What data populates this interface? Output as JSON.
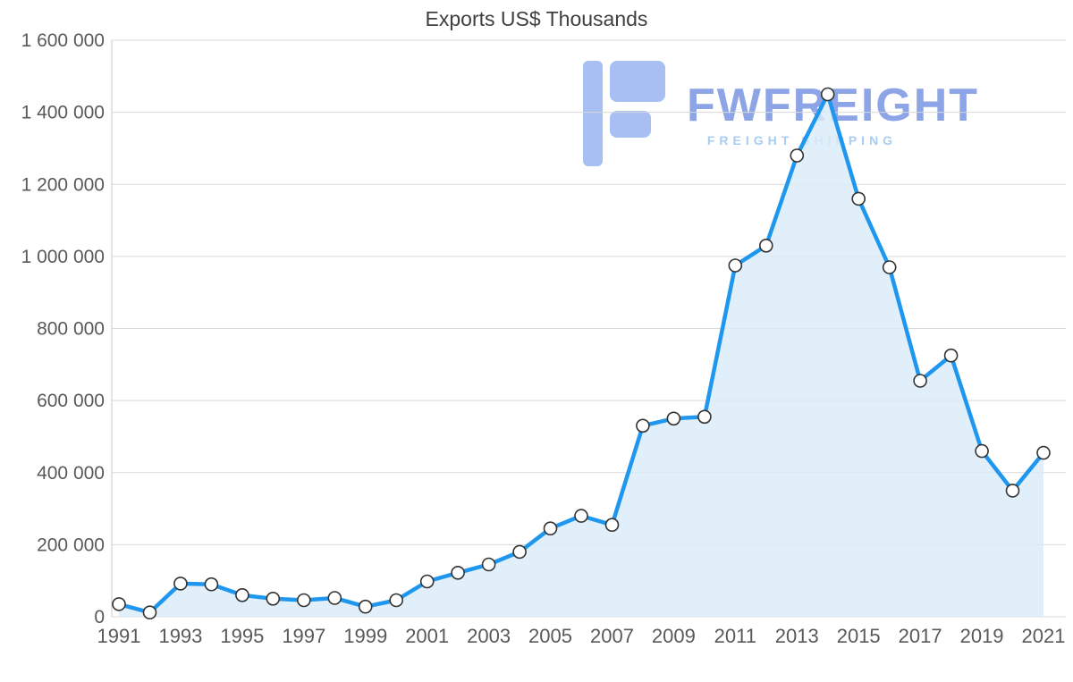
{
  "watermark": {
    "brand": "FWFREIGHT",
    "subtitle": "FREIGHT SHIPPING"
  },
  "chart_data": {
    "type": "area",
    "title": "Exports US$ Thousands",
    "xlabel": "",
    "ylabel": "",
    "x": [
      1991,
      1992,
      1993,
      1994,
      1995,
      1996,
      1997,
      1998,
      1999,
      2000,
      2001,
      2002,
      2003,
      2004,
      2005,
      2006,
      2007,
      2008,
      2009,
      2010,
      2011,
      2012,
      2013,
      2014,
      2015,
      2016,
      2017,
      2018,
      2019,
      2020,
      2021
    ],
    "series": [
      {
        "name": "Exports US$ Thousands",
        "values": [
          35000,
          12000,
          92000,
          90000,
          60000,
          50000,
          46000,
          52000,
          28000,
          46000,
          98000,
          122000,
          145000,
          180000,
          245000,
          280000,
          255000,
          530000,
          550000,
          555000,
          975000,
          1030000,
          1280000,
          1450000,
          1160000,
          970000,
          655000,
          725000,
          460000,
          350000,
          455000
        ]
      }
    ],
    "ylim": [
      0,
      1600000
    ],
    "ytick_step": 200000,
    "xtick_step": 2,
    "grid": true,
    "legend": "none",
    "colors": {
      "line": "#1f97ef",
      "area": "#daecfa",
      "marker_fill": "#ffffff",
      "marker_stroke": "#333333",
      "grid": "#d9d9d9",
      "axis": "#c8c8c8",
      "text": "#595959",
      "title": "#3f3f3f",
      "watermark_brand": "#8da4e6",
      "watermark_sub": "#a8cdf2",
      "logo": "#a7bff2"
    }
  }
}
